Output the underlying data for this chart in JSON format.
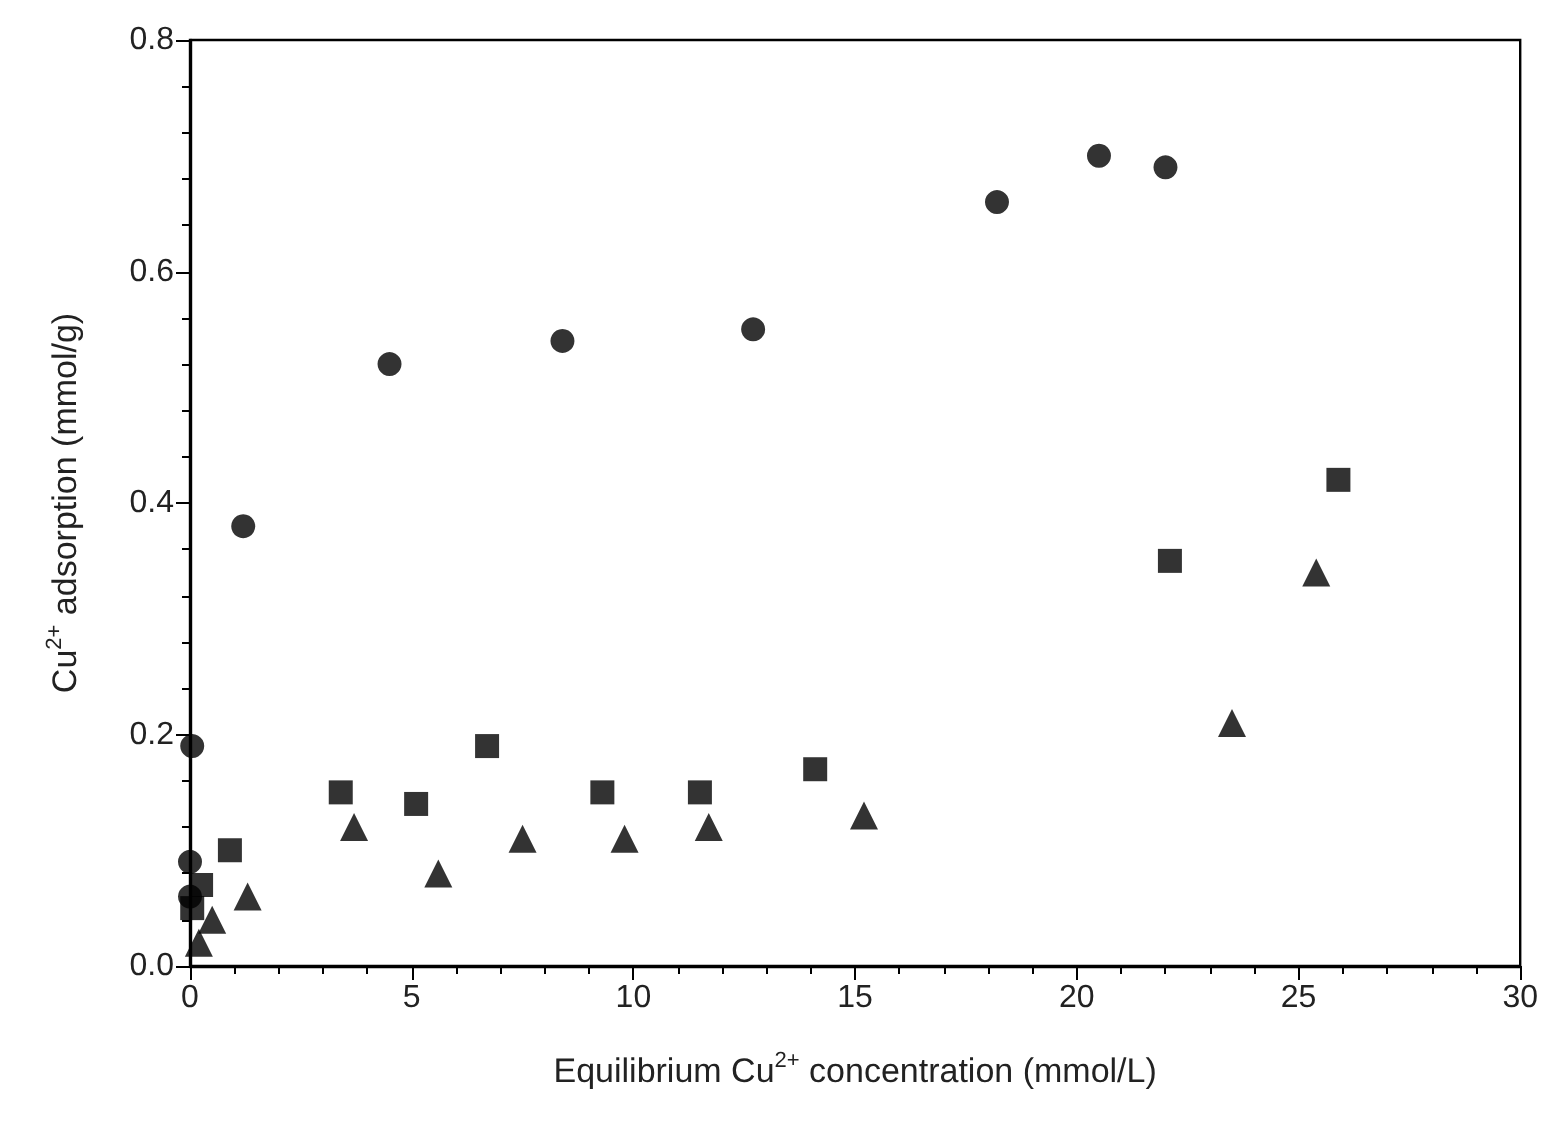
{
  "chart_data": {
    "type": "scatter",
    "xlabel": "Equilibrium Cu$^{2+}$ concentration (mmol/L)",
    "ylabel": "Cu$^{2+}$ adsorption (mmol/g)",
    "xlim": [
      0,
      30
    ],
    "xticks": [
      0,
      5,
      10,
      15,
      20,
      25,
      30
    ],
    "ylim": [
      0,
      0.8
    ],
    "yticks": [
      {
        "value": 0,
        "label": "0.0"
      },
      {
        "value": 0.2,
        "label": "0.2"
      },
      {
        "value": 0.4,
        "label": "0.4"
      },
      {
        "value": 0.6,
        "label": "0.6"
      },
      {
        "value": 0.8,
        "label": "0.8"
      }
    ],
    "series": [
      {
        "color": "#000000",
        "marker": "circle",
        "x": [
          0,
          0,
          0.05,
          1.2,
          4.5,
          8.4,
          12.7,
          18.2,
          20.5,
          22
        ],
        "values": [
          0.06,
          0.09,
          0.19,
          0.38,
          0.52,
          0.54,
          0.55,
          0.66,
          0.7,
          0.69
        ]
      },
      {
        "color": "#000000",
        "marker": "square",
        "x": [
          0.05,
          0.25,
          0.9,
          3.4,
          5.1,
          6.7,
          9.3,
          11.5,
          14.1,
          22.1,
          25.9
        ],
        "values": [
          0.05,
          0.07,
          0.1,
          0.15,
          0.14,
          0.19,
          0.15,
          0.15,
          0.17,
          0.35,
          0.42
        ]
      },
      {
        "color": "#000000",
        "marker": "triangle",
        "x": [
          0.2,
          0.5,
          1.3,
          3.7,
          5.6,
          7.5,
          9.8,
          11.7,
          15.2,
          23.5,
          25.4
        ],
        "values": [
          0.02,
          0.04,
          0.06,
          0.12,
          0.08,
          0.11,
          0.11,
          0.12,
          0.13,
          0.21,
          0.34
        ]
      }
    ]
  }
}
